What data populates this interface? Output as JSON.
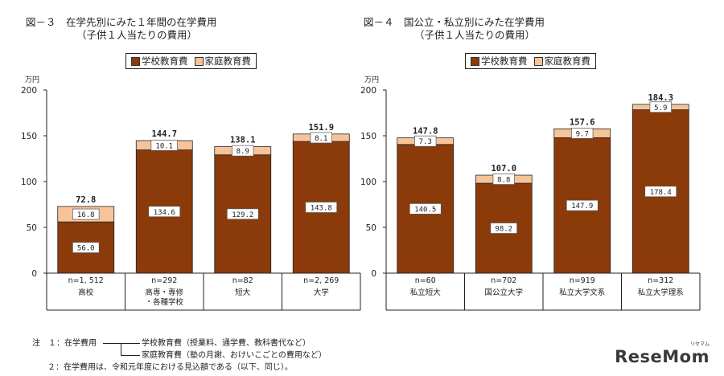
{
  "colors": {
    "school": "#8b3a0a",
    "home": "#f7c49a"
  },
  "chart_data": [
    {
      "type": "bar",
      "stacked": true,
      "title_line1": "図－３　在学先別にみた１年間の在学費用",
      "title_line2": "（子供１人当たりの費用）",
      "unit": "万円",
      "legend": [
        "学校教育費",
        "家庭教育費"
      ],
      "ylim": [
        0,
        200
      ],
      "yticks": [
        "0",
        "50",
        "100",
        "150",
        "200"
      ],
      "categories": [
        {
          "n": "n=1, 512",
          "label": [
            "高校"
          ]
        },
        {
          "n": "n=292",
          "label": [
            "高専・専修",
            "・各種学校"
          ]
        },
        {
          "n": "n=82",
          "label": [
            "短大"
          ]
        },
        {
          "n": "n=2, 269",
          "label": [
            "大学"
          ]
        }
      ],
      "series": [
        {
          "name": "学校教育費",
          "values": [
            56.0,
            134.6,
            129.2,
            143.8
          ],
          "labels": [
            "56.0",
            "134.6",
            "129.2",
            "143.8"
          ]
        },
        {
          "name": "家庭教育費",
          "values": [
            16.8,
            10.1,
            8.9,
            8.1
          ],
          "labels": [
            "16.8",
            "10.1",
            "8.9",
            "8.1"
          ]
        }
      ],
      "totals": [
        "72.8",
        "144.7",
        "138.1",
        "151.9"
      ]
    },
    {
      "type": "bar",
      "stacked": true,
      "title_line1": "図－４　国公立・私立別にみた在学費用",
      "title_line2": "（子供１人当たりの費用）",
      "unit": "万円",
      "legend": [
        "学校教育費",
        "家庭教育費"
      ],
      "ylim": [
        0,
        200
      ],
      "yticks": [
        "0",
        "50",
        "100",
        "150",
        "200"
      ],
      "categories": [
        {
          "n": "n=60",
          "label": [
            "私立短大"
          ]
        },
        {
          "n": "n=702",
          "label": [
            "国公立大学"
          ]
        },
        {
          "n": "n=919",
          "label": [
            "私立大学文系"
          ]
        },
        {
          "n": "n=312",
          "label": [
            "私立大学理系"
          ]
        }
      ],
      "series": [
        {
          "name": "学校教育費",
          "values": [
            140.5,
            98.2,
            147.9,
            178.4
          ],
          "labels": [
            "140.5",
            "98.2",
            "147.9",
            "178.4"
          ]
        },
        {
          "name": "家庭教育費",
          "values": [
            7.3,
            8.8,
            9.7,
            5.9
          ],
          "labels": [
            "7.3",
            "8.8",
            "9.7",
            "5.9"
          ]
        }
      ],
      "totals": [
        "147.8",
        "107.0",
        "157.6",
        "184.3"
      ]
    }
  ],
  "notes": {
    "line1_prefix": "注　１：在学費用",
    "line1_school": "学校教育費（授業料、通学費、教科書代など）",
    "line2_home": "家庭教育費（塾の月謝、おけいこごとの費用など）",
    "line3": "２：在学費用は、令和元年度における見込額である（以下、同じ）。"
  },
  "logo": {
    "text": "ReseMom",
    "ruby": "リセマム"
  }
}
